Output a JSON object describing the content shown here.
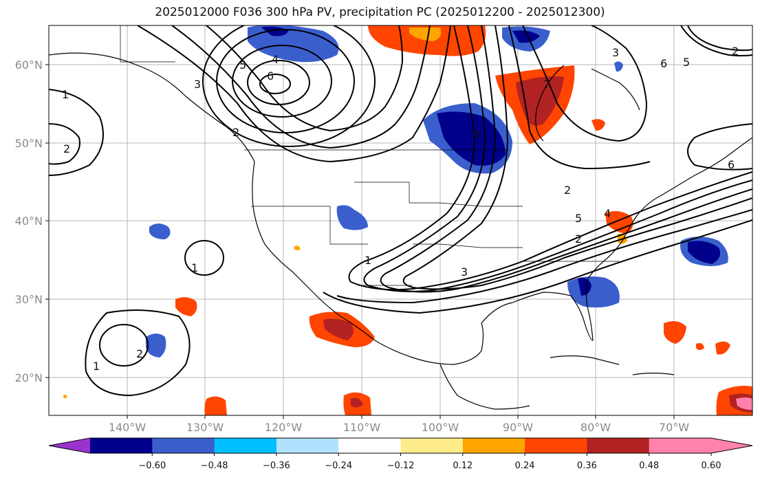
{
  "title": "2025012000 F036 300 hPa PV, precipitation PC (2025012200 - 2025012300)",
  "map": {
    "lat_ticks": [
      "60°N",
      "50°N",
      "40°N",
      "30°N",
      "20°N"
    ],
    "lon_ticks": [
      "140°W",
      "130°W",
      "120°W",
      "110°W",
      "100°W",
      "90°W",
      "80°W",
      "70°W"
    ],
    "contour_labels": [
      "1",
      "2",
      "5",
      "4",
      "6",
      "3",
      "2",
      "1",
      "1",
      "2",
      "1",
      "5",
      "2",
      "3",
      "6",
      "2",
      "5",
      "6",
      "4",
      "2",
      "7",
      "8",
      "3"
    ]
  },
  "colorbar": {
    "colors": [
      "#9932cc",
      "#00008b",
      "#3a5fcd",
      "#00bfff",
      "#b0e2ff",
      "#ffffff",
      "#ffec8b",
      "#ffa500",
      "#ff4500",
      "#b22222",
      "#ff82ab",
      "#ff82ab"
    ],
    "labels": [
      "−0.60",
      "−0.48",
      "−0.36",
      "−0.24",
      "−0.12",
      "0.12",
      "0.24",
      "0.36",
      "0.48",
      "0.60"
    ]
  }
}
